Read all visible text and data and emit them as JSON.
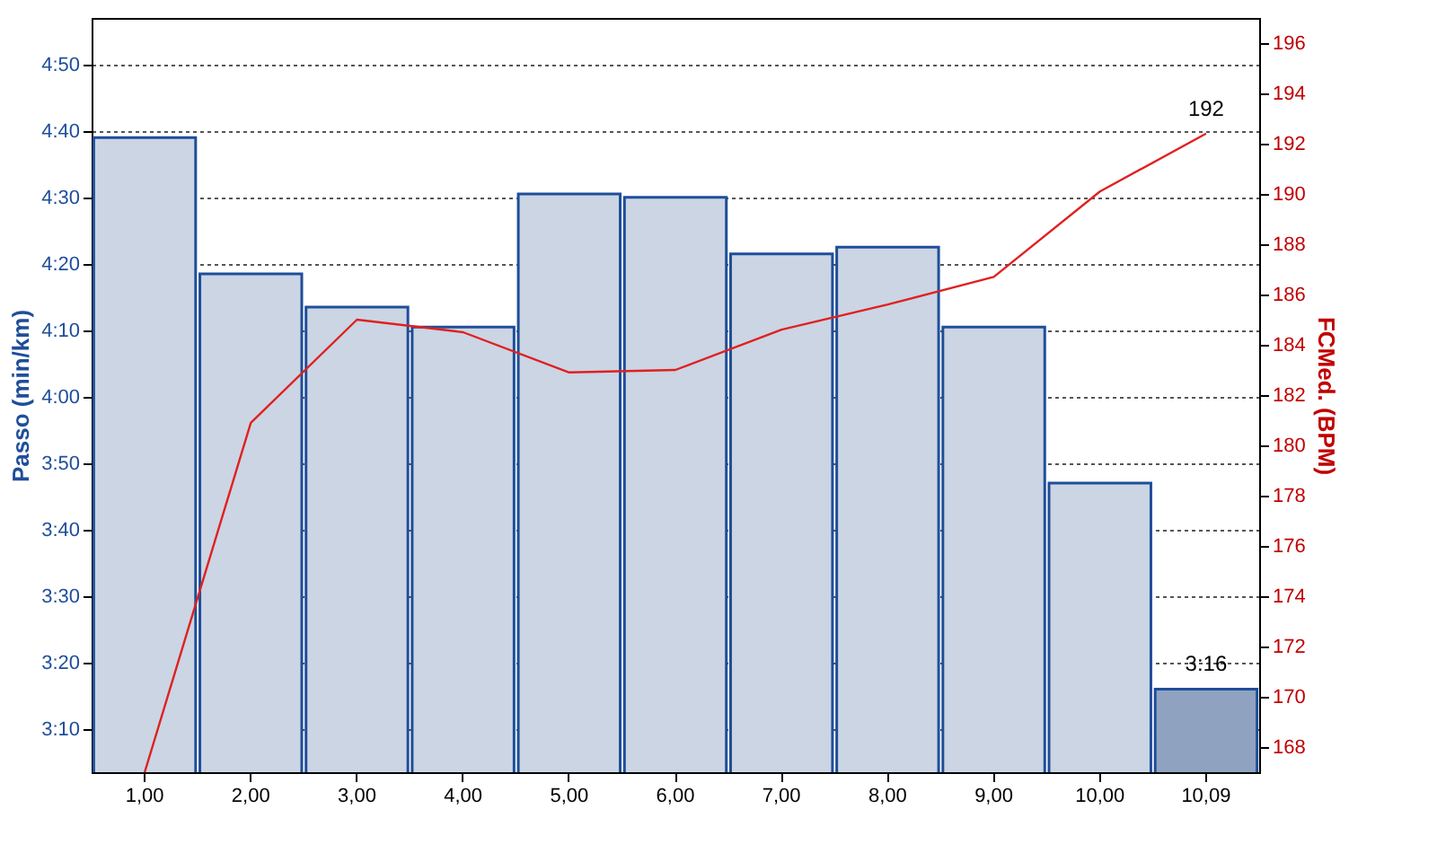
{
  "chart_data": {
    "type": "bar",
    "xlabel": null,
    "ylabel": "Passo (min/km)",
    "y2label": "FCMed. (BPM)",
    "categories": [
      "1,00",
      "2,00",
      "3,00",
      "4,00",
      "5,00",
      "6,00",
      "7,00",
      "8,00",
      "9,00",
      "10,00",
      "10,09"
    ],
    "series": [
      {
        "colors": [
          "#cbd5e3",
          "#cbd5e3",
          "#cbd5e3",
          "#cbd5e3",
          "#cbd5e3",
          "#cbd5e3",
          "#cbd5e3",
          "#cbd5e3",
          "#cbd5e3",
          "#cbd5e3",
          "#8fa3c0"
        ],
        "values": [
          279,
          258.5,
          253.5,
          250.5,
          270.5,
          270,
          261.5,
          262.5,
          250.5,
          227,
          196
        ],
        "value_labels": [
          null,
          null,
          null,
          null,
          null,
          null,
          null,
          null,
          null,
          null,
          "3:16"
        ]
      },
      {
        "type": "line",
        "axis": "y2",
        "color": "#e02020",
        "values": [
          167,
          180.9,
          185.0,
          184.5,
          182.9,
          183.0,
          184.6,
          185.6,
          186.7,
          190.1,
          192.4
        ],
        "value_labels": [
          null,
          null,
          null,
          null,
          null,
          null,
          null,
          null,
          null,
          null,
          "192"
        ]
      }
    ],
    "ylim": [
      183.5,
      297
    ],
    "yticks": [
      {
        "value": 190,
        "label": "3:10"
      },
      {
        "value": 200,
        "label": "3:20"
      },
      {
        "value": 210,
        "label": "3:30"
      },
      {
        "value": 220,
        "label": "3:40"
      },
      {
        "value": 230,
        "label": "3:50"
      },
      {
        "value": 240,
        "label": "4:00"
      },
      {
        "value": 250,
        "label": "4:10"
      },
      {
        "value": 260,
        "label": "4:20"
      },
      {
        "value": 270,
        "label": "4:30"
      },
      {
        "value": 280,
        "label": "4:40"
      },
      {
        "value": 290,
        "label": "4:50"
      }
    ],
    "y2lim": [
      167,
      197
    ],
    "y2ticks": [
      168,
      170,
      172,
      174,
      176,
      178,
      180,
      182,
      184,
      186,
      188,
      190,
      192,
      194,
      196
    ],
    "grid": "y"
  }
}
